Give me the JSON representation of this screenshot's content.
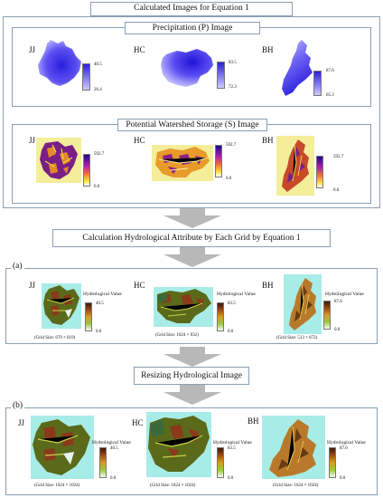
{
  "top_title": "Calculated Images for Equation 1",
  "precip": {
    "title": "Precipitation (P) Image",
    "jj": {
      "name": "JJ",
      "max": "40.5",
      "min": "26.4"
    },
    "hc": {
      "name": "HC",
      "max": "83.5",
      "min": "72.3"
    },
    "bh": {
      "name": "BH",
      "max": "87.6",
      "min": "65.3"
    }
  },
  "storage": {
    "title": "Potential Watershed Storage (S) Image",
    "jj": {
      "name": "JJ",
      "max": "592.7",
      "min": "0.0"
    },
    "hc": {
      "name": "HC",
      "max": "592.7",
      "min": "0.0"
    },
    "bh": {
      "name": "BH",
      "max": "592.7",
      "min": "0.0"
    }
  },
  "calc_title": "Calculation Hydrological Attribute by Each Grid by Equation 1",
  "section_a": {
    "tag": "(a)",
    "jj": {
      "name": "JJ",
      "hv": "Hydrological Value",
      "max": "40.5",
      "min": "0.0",
      "grid": "(Grid Size: 670 × 819)"
    },
    "hc": {
      "name": "HC",
      "hv": "Hydrological Value",
      "max": "83.5",
      "min": "0.0",
      "grid": "(Grid Size: 1024 × 632)"
    },
    "bh": {
      "name": "BH",
      "hv": "Hydrological Value",
      "max": "87.6",
      "min": "0.0",
      "grid": "(Grid Size: 513 × 872)"
    }
  },
  "resize_title": "Resizing Hydrological Image",
  "section_b": {
    "tag": "(b)",
    "jj": {
      "name": "JJ",
      "hv": "Hydrological Value",
      "max": "40.5",
      "min": "0.0",
      "grid": "(Grid Size: 1024 × 1024)"
    },
    "hc": {
      "name": "HC",
      "hv": "Hydrological Value",
      "max": "83.5",
      "min": "0.0",
      "grid": "(Grid Size: 1024 × 1024)"
    },
    "bh": {
      "name": "BH",
      "hv": "Hydrological Value",
      "max": "87.6",
      "min": "0.0",
      "grid": "(Grid Size: 1024 × 1024)"
    }
  },
  "colors": {
    "border": "#8aa0b4",
    "arrow": "#b8b8b8",
    "precip_dark": "#2b1fe0",
    "precip_light": "#c9c4ff",
    "storage_bg": "#f4ee9a",
    "hydro_bg": "#a8ece8"
  }
}
